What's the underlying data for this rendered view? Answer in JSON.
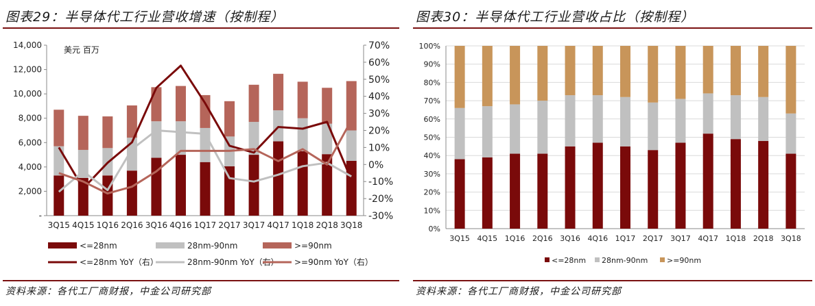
{
  "left": {
    "title": "图表29：半导体代工行业营收增速（按制程）",
    "source": "资料来源：各代工厂商财报，中金公司研究部",
    "unit_label": "美元  百万"
  },
  "right": {
    "title": "图表30：半导体代工行业营收占比（按制程）",
    "source": "资料来源：各代工厂商财报，中金公司研究部"
  },
  "colors": {
    "lt28": "#7a0a0a",
    "mid": "#c0c0c0",
    "gt90": "#b5655a",
    "gt90_share": "#c8955a",
    "rule": "#7a1010"
  },
  "chart_data": [
    {
      "type": "bar",
      "subtype": "stacked bar with lines on secondary axis",
      "categories": [
        "3Q15",
        "4Q15",
        "1Q16",
        "2Q16",
        "3Q16",
        "4Q16",
        "1Q17",
        "2Q17",
        "3Q17",
        "4Q17",
        "1Q18",
        "2Q18",
        "3Q18"
      ],
      "ylim": [
        0,
        14000
      ],
      "y_ticks": [
        "-",
        "2,000",
        "4,000",
        "6,000",
        "8,000",
        "10,000",
        "12,000",
        "14,000"
      ],
      "y2lim": [
        -30,
        70
      ],
      "y2_ticks": [
        "-30%",
        "-20%",
        "-10%",
        "0%",
        "10%",
        "20%",
        "30%",
        "40%",
        "50%",
        "60%",
        "70%"
      ],
      "grid": false,
      "legend_position": "bottom",
      "series": [
        {
          "name": "<=28nm",
          "kind": "bar",
          "color_key": "lt28",
          "values": [
            3300,
            3100,
            3300,
            3700,
            4750,
            5000,
            4400,
            4050,
            5000,
            6100,
            5300,
            5050,
            4500
          ]
        },
        {
          "name": "28nm-90nm",
          "kind": "bar",
          "color_key": "mid",
          "values": [
            2400,
            2300,
            2250,
            2700,
            3000,
            2750,
            2800,
            2450,
            2700,
            2550,
            2700,
            2500,
            2500
          ]
        },
        {
          "name": ">=90nm",
          "kind": "bar",
          "color_key": "gt90",
          "values": [
            3000,
            2800,
            2600,
            2650,
            2800,
            2900,
            2700,
            2900,
            3050,
            3000,
            3000,
            2950,
            4050
          ]
        },
        {
          "name": "<=28nm YoY（右）",
          "kind": "line",
          "axis": "right",
          "color_key": "lt28",
          "values": [
            10,
            -14,
            1,
            13,
            45,
            58,
            36,
            11,
            7,
            22,
            21,
            25,
            -9
          ]
        },
        {
          "name": "28nm-90nm YoY（右）",
          "kind": "line",
          "axis": "right",
          "color_key": "mid",
          "values": [
            -16,
            -4,
            -15,
            9,
            20,
            19,
            18,
            -8,
            -10,
            -6,
            -1,
            1,
            -7
          ]
        },
        {
          "name": ">=90nm YoY（右）",
          "kind": "line",
          "axis": "right",
          "color_key": "gt90",
          "values": [
            -5,
            -10,
            -17,
            -13,
            -4,
            8,
            8,
            8,
            9,
            2,
            9,
            0,
            26
          ]
        }
      ]
    },
    {
      "type": "bar",
      "subtype": "100% stacked bar",
      "categories": [
        "3Q15",
        "4Q15",
        "1Q16",
        "2Q16",
        "3Q16",
        "4Q16",
        "1Q17",
        "2Q17",
        "3Q17",
        "4Q17",
        "1Q18",
        "2Q18",
        "3Q18"
      ],
      "ylim": [
        0,
        100
      ],
      "y_ticks": [
        "0%",
        "10%",
        "20%",
        "30%",
        "40%",
        "50%",
        "60%",
        "70%",
        "80%",
        "90%",
        "100%"
      ],
      "grid": true,
      "legend_position": "bottom",
      "series": [
        {
          "name": "<=28nm",
          "color_key": "lt28",
          "values": [
            38,
            39,
            41,
            41,
            45,
            47,
            45,
            43,
            47,
            52,
            49,
            48,
            41
          ]
        },
        {
          "name": "28nm-90nm",
          "color_key": "mid",
          "values": [
            28,
            28,
            27,
            29,
            28,
            26,
            27,
            26,
            24,
            22,
            24,
            24,
            22
          ]
        },
        {
          "name": ">=90nm",
          "color_key": "gt90_share",
          "values": [
            34,
            33,
            32,
            30,
            27,
            27,
            28,
            31,
            29,
            26,
            27,
            28,
            37
          ]
        }
      ]
    }
  ]
}
